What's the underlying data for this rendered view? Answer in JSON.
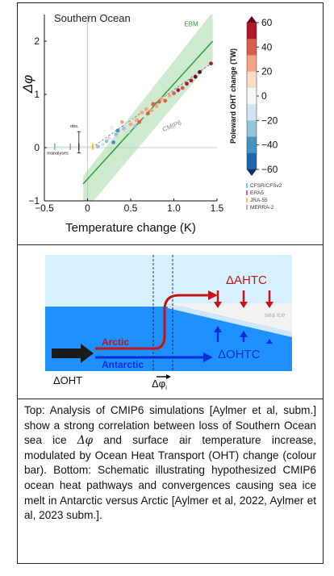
{
  "chart_data": {
    "type": "scatter",
    "title": "Southern Ocean",
    "xlabel": "Temperature change (K)",
    "ylabel": "Δφ",
    "xlim": [
      -0.5,
      1.5
    ],
    "ylim": [
      -1,
      2.5
    ],
    "x_ticks": [
      "−0.5",
      "0",
      "0.5",
      "1.0",
      "1.5"
    ],
    "y_ticks": [
      "−1",
      "0",
      "1",
      "2"
    ],
    "ebm_label": "EBM",
    "cmip6_label": "CMIP6",
    "obs_label": "obs.",
    "reanalyses_label": "reanalyses",
    "colorbar": {
      "label": "Poleward OHT change (TW)",
      "ticks": [
        "60",
        "40",
        "20",
        "0",
        "−20",
        "−40",
        "−60"
      ],
      "colors": [
        "#b2182b",
        "#d6604d",
        "#f4a582",
        "#fddbc7",
        "#f7f7f7",
        "#d1e5f0",
        "#92c5de",
        "#4393c3",
        "#2166ac"
      ]
    },
    "reanalyses": [
      {
        "name": "CFSR/CFSv2",
        "color": "#3fc6cf"
      },
      {
        "name": "ERA5",
        "color": "#c02ca8"
      },
      {
        "name": "JRA-55",
        "color": "#f0b400"
      },
      {
        "name": "MERRA-2",
        "color": "#999999"
      }
    ],
    "ebm_line": {
      "x": [
        -0.05,
        1.45
      ],
      "y": [
        -0.68,
        2.0
      ]
    },
    "cmip6_line": {
      "x": [
        0.05,
        1.45
      ],
      "y": [
        0.0,
        1.6
      ]
    },
    "points": [
      {
        "x": 0.12,
        "y": 0.02,
        "c": "#92c5de"
      },
      {
        "x": 0.18,
        "y": 0.06,
        "c": "#d1e5f0"
      },
      {
        "x": 0.22,
        "y": 0.12,
        "c": "#92c5de"
      },
      {
        "x": 0.25,
        "y": 0.18,
        "c": "#dddddd"
      },
      {
        "x": 0.3,
        "y": 0.15,
        "c": "#d1e5f0"
      },
      {
        "x": 0.33,
        "y": 0.25,
        "c": "#92c5de"
      },
      {
        "x": 0.35,
        "y": 0.32,
        "c": "#4393c3"
      },
      {
        "x": 0.4,
        "y": 0.28,
        "c": "#fddbc7"
      },
      {
        "x": 0.42,
        "y": 0.36,
        "c": "#92c5de"
      },
      {
        "x": 0.45,
        "y": 0.42,
        "c": "#d1e5f0"
      },
      {
        "x": 0.47,
        "y": 0.3,
        "c": "#dddddd"
      },
      {
        "x": 0.5,
        "y": 0.44,
        "c": "#f4a582"
      },
      {
        "x": 0.52,
        "y": 0.5,
        "c": "#fddbc7"
      },
      {
        "x": 0.55,
        "y": 0.4,
        "c": "#92c5de"
      },
      {
        "x": 0.57,
        "y": 0.52,
        "c": "#f4a582"
      },
      {
        "x": 0.6,
        "y": 0.48,
        "c": "#d6604d"
      },
      {
        "x": 0.62,
        "y": 0.58,
        "c": "#fddbc7"
      },
      {
        "x": 0.63,
        "y": 0.66,
        "c": "#f4a582"
      },
      {
        "x": 0.66,
        "y": 0.6,
        "c": "#d1e5f0"
      },
      {
        "x": 0.68,
        "y": 0.72,
        "c": "#f4a582"
      },
      {
        "x": 0.7,
        "y": 0.64,
        "c": "#d6604d"
      },
      {
        "x": 0.72,
        "y": 0.76,
        "c": "#fddbc7"
      },
      {
        "x": 0.74,
        "y": 0.7,
        "c": "#f4a582"
      },
      {
        "x": 0.76,
        "y": 0.82,
        "c": "#d6604d"
      },
      {
        "x": 0.8,
        "y": 0.78,
        "c": "#f4a582"
      },
      {
        "x": 0.83,
        "y": 0.86,
        "c": "#d6604d"
      },
      {
        "x": 0.86,
        "y": 0.92,
        "c": "#f4a582"
      },
      {
        "x": 0.9,
        "y": 0.88,
        "c": "#d6604d"
      },
      {
        "x": 0.95,
        "y": 0.98,
        "c": "#f4a582"
      },
      {
        "x": 1.0,
        "y": 1.02,
        "c": "#d6604d"
      },
      {
        "x": 1.05,
        "y": 1.08,
        "c": "#b2182b"
      },
      {
        "x": 1.1,
        "y": 1.12,
        "c": "#d6604d"
      },
      {
        "x": 1.15,
        "y": 1.2,
        "c": "#b2182b"
      },
      {
        "x": 1.2,
        "y": 1.26,
        "c": "#b2182b"
      },
      {
        "x": 1.25,
        "y": 1.33,
        "c": "#7f0a20"
      },
      {
        "x": 1.3,
        "y": 1.42,
        "c": "#67001f"
      },
      {
        "x": 1.43,
        "y": 1.58,
        "c": "#b2182b"
      },
      {
        "x": 0.2,
        "y": 0.3,
        "c": "#f7f7f7"
      },
      {
        "x": 0.28,
        "y": 0.38,
        "c": "#eeeeee"
      },
      {
        "x": 0.4,
        "y": 0.48,
        "c": "#f4a582"
      },
      {
        "x": 0.3,
        "y": 0.1,
        "c": "#4393c3"
      }
    ]
  },
  "diagram": {
    "arctic_label": "Arctic",
    "antarctic_label": "Antarctic",
    "ahtc_label": "ΔAHTC",
    "ohtc_label": "ΔOHTC",
    "oht_label": "ΔOHT",
    "phi_label": "Δφ",
    "phi_subscript": "i",
    "sea_ice_label": "sea ice",
    "colors": {
      "ocean": "#1e90ff",
      "sky": "#d7f1ff",
      "arctic": "#c41414",
      "antarctic": "#0b2fd6",
      "ice": "#f0f0f0"
    }
  },
  "caption": {
    "part1": "Top: Analysis of CMIP6 simulations [Aylmer et al, subm.] show a strong correlation between loss of Southern Ocean sea ice ",
    "symbol": "Δφ",
    "part2": " and surface air temperature increase, modulated by Ocean Heat Transport (OHT) change (colour bar). Bottom: Schematic illustrating hypothesized CMIP6 ocean heat pathways and convergences causing sea ice melt in Antarctic versus Arctic [Aylmer et al, 2022, Aylmer et al, 2023 subm.]."
  }
}
